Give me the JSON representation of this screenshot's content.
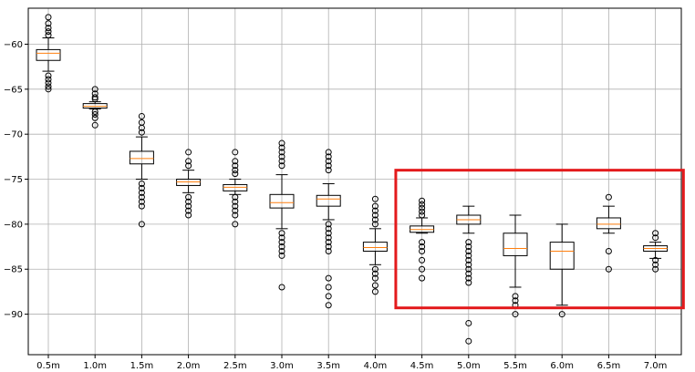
{
  "chart_data": {
    "type": "boxplot",
    "title": "",
    "xlabel": "",
    "ylabel": "",
    "grid": true,
    "ylim": [
      -94.5,
      -56
    ],
    "yticks": [
      -60,
      -65,
      -70,
      -75,
      -80,
      -85,
      -90
    ],
    "ytick_labels": [
      "−60",
      "−65",
      "−70",
      "−75",
      "−80",
      "−85",
      "−90"
    ],
    "categories": [
      "0.5m",
      "1.0m",
      "1.5m",
      "2.0m",
      "2.5m",
      "3.0m",
      "3.5m",
      "4.0m",
      "4.5m",
      "5.0m",
      "5.5m",
      "6.0m",
      "6.5m",
      "7.0m"
    ],
    "boxes": [
      {
        "whislo": -63.0,
        "q1": -61.8,
        "med": -61.0,
        "q3": -60.6,
        "whishi": -59.3,
        "fliers": [
          -57.0,
          -57.7,
          -58.2,
          -58.6,
          -59.0,
          -63.5,
          -63.9,
          -64.3,
          -64.7,
          -65.0
        ]
      },
      {
        "whislo": -67.2,
        "q1": -67.1,
        "med": -66.9,
        "q3": -66.6,
        "whishi": -66.4,
        "fliers": [
          -65.0,
          -65.5,
          -65.9,
          -66.1,
          -67.5,
          -67.8,
          -68.2,
          -69.0
        ]
      },
      {
        "whislo": -75.0,
        "q1": -73.3,
        "med": -72.7,
        "q3": -71.9,
        "whishi": -70.3,
        "fliers": [
          -68.0,
          -68.7,
          -69.3,
          -69.8,
          -75.5,
          -76.0,
          -76.5,
          -77.0,
          -77.5,
          -78.0,
          -80.0
        ]
      },
      {
        "whislo": -76.5,
        "q1": -75.7,
        "med": -75.3,
        "q3": -75.0,
        "whishi": -74.0,
        "fliers": [
          -72.0,
          -73.0,
          -73.5,
          -77.0,
          -77.5,
          -78.0,
          -78.5,
          -79.0
        ]
      },
      {
        "whislo": -76.7,
        "q1": -76.3,
        "med": -75.9,
        "q3": -75.6,
        "whishi": -75.0,
        "fliers": [
          -72.0,
          -73.0,
          -73.5,
          -74.0,
          -74.4,
          -77.0,
          -77.5,
          -78.0,
          -78.5,
          -79.0,
          -80.0
        ]
      },
      {
        "whislo": -80.5,
        "q1": -78.2,
        "med": -77.6,
        "q3": -76.7,
        "whishi": -74.5,
        "fliers": [
          -71.0,
          -71.5,
          -72.0,
          -72.5,
          -73.0,
          -73.5,
          -81.0,
          -81.5,
          -82.0,
          -82.5,
          -83.0,
          -83.5,
          -87.0
        ]
      },
      {
        "whislo": -79.5,
        "q1": -78.0,
        "med": -77.2,
        "q3": -76.8,
        "whishi": -75.5,
        "fliers": [
          -72.0,
          -72.5,
          -73.0,
          -73.5,
          -74.0,
          -80.0,
          -80.5,
          -81.0,
          -81.5,
          -82.0,
          -82.5,
          -83.0,
          -86.0,
          -87.0,
          -88.0,
          -89.0
        ]
      },
      {
        "whislo": -84.5,
        "q1": -83.0,
        "med": -82.6,
        "q3": -82.0,
        "whishi": -80.5,
        "fliers": [
          -77.2,
          -78.0,
          -78.5,
          -79.0,
          -79.5,
          -80.0,
          -85.0,
          -85.5,
          -86.0,
          -86.8,
          -87.5
        ]
      },
      {
        "whislo": -81.0,
        "q1": -80.9,
        "med": -80.6,
        "q3": -80.2,
        "whishi": -79.3,
        "fliers": [
          -77.4,
          -77.8,
          -78.2,
          -78.6,
          -79.0,
          -82.0,
          -82.5,
          -83.0,
          -84.0,
          -85.0,
          -86.0
        ]
      },
      {
        "whislo": -81.0,
        "q1": -80.0,
        "med": -79.5,
        "q3": -79.0,
        "whishi": -78.0,
        "fliers": [
          -82.0,
          -82.5,
          -83.0,
          -83.5,
          -84.0,
          -84.5,
          -85.0,
          -85.5,
          -86.0,
          -86.5,
          -91.0,
          -93.0
        ]
      },
      {
        "whislo": -87.0,
        "q1": -83.5,
        "med": -82.7,
        "q3": -81.0,
        "whishi": -79.0,
        "fliers": [
          -88.0,
          -88.5,
          -89.0,
          -90.0
        ]
      },
      {
        "whislo": -89.0,
        "q1": -85.0,
        "med": -83.0,
        "q3": -82.0,
        "whishi": -80.0,
        "fliers": [
          -90.0
        ]
      },
      {
        "whislo": -81.0,
        "q1": -80.5,
        "med": -80.0,
        "q3": -79.3,
        "whishi": -78.0,
        "fliers": [
          -77.0,
          -83.0,
          -85.0
        ]
      },
      {
        "whislo": -83.8,
        "q1": -83.0,
        "med": -82.7,
        "q3": -82.4,
        "whishi": -82.0,
        "fliers": [
          -81.0,
          -81.5,
          -84.0,
          -84.5,
          -85.0
        ]
      }
    ],
    "box_color": "#000000",
    "median_color": "#ff7f0e",
    "grid_color": "#b0b0b0",
    "annotation": {
      "type": "rectangle",
      "color": "#e31a1c",
      "x_range": [
        "4.5m",
        "7.0m"
      ],
      "y_range": [
        -74.0,
        -89.3
      ]
    }
  }
}
